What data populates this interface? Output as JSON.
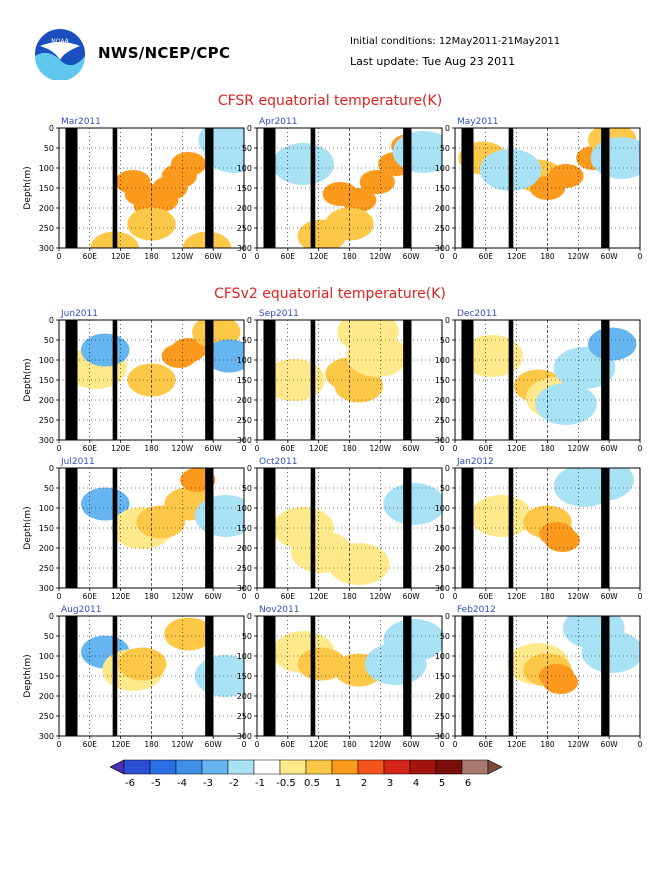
{
  "header": {
    "org": "NWS/NCEP/CPC",
    "initial": "Initial conditions: 12May2011-21May2011",
    "update": "Last update: Tue Aug 23 2011",
    "logo_text": "NOAA"
  },
  "sections": {
    "cfsr_title": "CFSR equatorial temperature(K)",
    "cfsv2_title": "CFSv2 equatorial temperature(K)"
  },
  "axes": {
    "ylabel": "Depth(m)",
    "yticks": [
      "0",
      "50",
      "100",
      "150",
      "200",
      "250",
      "300"
    ],
    "xticks": [
      "0",
      "60E",
      "120E",
      "180",
      "120W",
      "60W",
      "0"
    ]
  },
  "legend": {
    "labels": [
      "-6",
      "-5",
      "-4",
      "-3",
      "-2",
      "-1",
      "-0.5",
      "0.5",
      "1",
      "2",
      "3",
      "4",
      "5",
      "6"
    ],
    "colors": [
      "#4b2fb3",
      "#2d4fd6",
      "#2b6fe6",
      "#3d8fe8",
      "#64b5f0",
      "#a9e2f5",
      "#ffffff",
      "#ffe98a",
      "#fdc847",
      "#fb9a1c",
      "#f5531c",
      "#d6261a",
      "#a4140e",
      "#7a0e0a",
      "#a77a70",
      "#7a4a3a"
    ]
  },
  "chart_data": [
    {
      "type": "heatmap",
      "title": "Mar2011",
      "blobs": [
        [
          2,
          0.3,
          1
        ],
        [
          2,
          0.8,
          1
        ],
        [
          3,
          0.4,
          0.45
        ],
        [
          3,
          0.45,
          0.55
        ],
        [
          3,
          0.5,
          0.65
        ],
        [
          3,
          0.55,
          0.6
        ],
        [
          3,
          0.6,
          0.5
        ],
        [
          3,
          0.65,
          0.4
        ],
        [
          3,
          0.7,
          0.3
        ],
        [
          2,
          0.5,
          0.8
        ],
        [
          -1,
          0.92,
          0.1
        ],
        [
          -1,
          0.95,
          0.2
        ]
      ]
    },
    {
      "type": "heatmap",
      "title": "Apr2011",
      "blobs": [
        [
          2,
          0.35,
          0.9
        ],
        [
          3,
          0.45,
          0.55
        ],
        [
          3,
          0.55,
          0.6
        ],
        [
          3,
          0.65,
          0.45
        ],
        [
          3,
          0.75,
          0.3
        ],
        [
          3,
          0.82,
          0.15
        ],
        [
          2,
          0.5,
          0.8
        ],
        [
          -1,
          0.25,
          0.3
        ],
        [
          -1,
          0.9,
          0.2
        ]
      ]
    },
    {
      "type": "heatmap",
      "title": "May2011",
      "blobs": [
        [
          2,
          0.15,
          0.25
        ],
        [
          2,
          0.45,
          0.4
        ],
        [
          3,
          0.5,
          0.5
        ],
        [
          3,
          0.6,
          0.4
        ],
        [
          3,
          0.75,
          0.25
        ],
        [
          2,
          0.85,
          0.1
        ],
        [
          -1,
          0.3,
          0.35
        ],
        [
          -1,
          0.9,
          0.25
        ]
      ]
    },
    {
      "type": "heatmap",
      "title": "Jun2011",
      "blobs": [
        [
          1,
          0.2,
          0.4
        ],
        [
          -2,
          0.25,
          0.25
        ],
        [
          2,
          0.5,
          0.5
        ],
        [
          3,
          0.65,
          0.3
        ],
        [
          3,
          0.7,
          0.25
        ],
        [
          2,
          0.85,
          0.1
        ],
        [
          -2,
          0.92,
          0.3
        ]
      ]
    },
    {
      "type": "heatmap",
      "title": "Sep2011",
      "blobs": [
        [
          1,
          0.2,
          0.5
        ],
        [
          2,
          0.5,
          0.45
        ],
        [
          2,
          0.55,
          0.55
        ],
        [
          1,
          0.65,
          0.3
        ],
        [
          1,
          0.6,
          0.1
        ]
      ]
    },
    {
      "type": "heatmap",
      "title": "Dec2011",
      "blobs": [
        [
          1,
          0.2,
          0.3
        ],
        [
          2,
          0.45,
          0.55
        ],
        [
          1,
          0.55,
          0.65
        ],
        [
          -1,
          0.7,
          0.4
        ],
        [
          -2,
          0.85,
          0.2
        ],
        [
          -1,
          0.6,
          0.7
        ]
      ]
    },
    {
      "type": "heatmap",
      "title": "Jul2011",
      "blobs": [
        [
          -2,
          0.25,
          0.3
        ],
        [
          1,
          0.45,
          0.5
        ],
        [
          2,
          0.55,
          0.45
        ],
        [
          2,
          0.7,
          0.3
        ],
        [
          3,
          0.75,
          0.1
        ],
        [
          -1,
          0.9,
          0.4
        ]
      ]
    },
    {
      "type": "heatmap",
      "title": "Oct2011",
      "blobs": [
        [
          1,
          0.25,
          0.5
        ],
        [
          1,
          0.35,
          0.7
        ],
        [
          -1,
          0.85,
          0.3
        ],
        [
          1,
          0.55,
          0.8
        ]
      ]
    },
    {
      "type": "heatmap",
      "title": "Jan2012",
      "blobs": [
        [
          1,
          0.25,
          0.4
        ],
        [
          2,
          0.5,
          0.45
        ],
        [
          3,
          0.55,
          0.55
        ],
        [
          3,
          0.58,
          0.6
        ],
        [
          -1,
          0.7,
          0.15
        ],
        [
          -1,
          0.8,
          0.1
        ]
      ]
    },
    {
      "type": "heatmap",
      "title": "Aug2011",
      "blobs": [
        [
          -2,
          0.25,
          0.3
        ],
        [
          1,
          0.4,
          0.45
        ],
        [
          2,
          0.7,
          0.15
        ],
        [
          2,
          0.45,
          0.4
        ],
        [
          -1,
          0.9,
          0.5
        ]
      ]
    },
    {
      "type": "heatmap",
      "title": "Nov2011",
      "blobs": [
        [
          1,
          0.25,
          0.3
        ],
        [
          2,
          0.35,
          0.4
        ],
        [
          2,
          0.55,
          0.45
        ],
        [
          -1,
          0.75,
          0.4
        ],
        [
          -1,
          0.85,
          0.2
        ]
      ]
    },
    {
      "type": "heatmap",
      "title": "Feb2012",
      "blobs": [
        [
          1,
          0.45,
          0.4
        ],
        [
          2,
          0.5,
          0.45
        ],
        [
          3,
          0.55,
          0.5
        ],
        [
          3,
          0.57,
          0.55
        ],
        [
          -1,
          0.75,
          0.1
        ],
        [
          -1,
          0.85,
          0.3
        ]
      ]
    }
  ]
}
